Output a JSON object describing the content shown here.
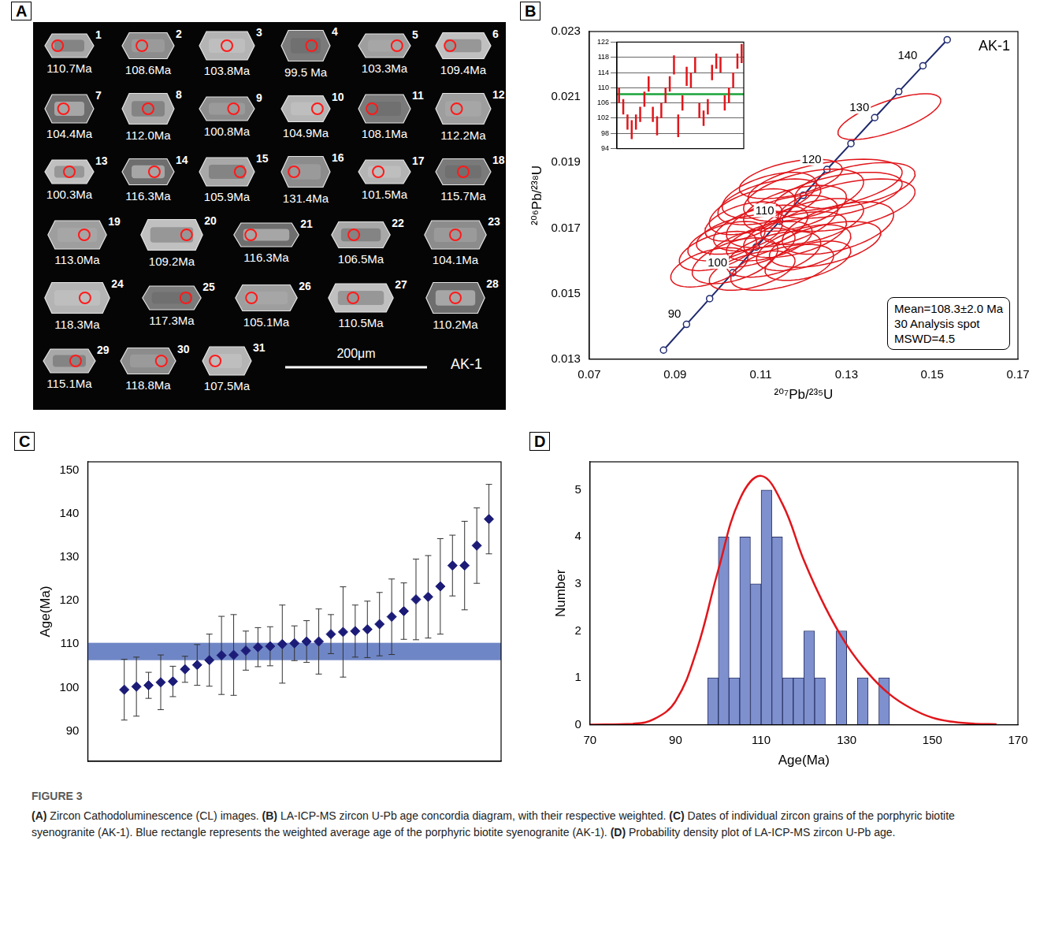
{
  "panel_a": {
    "letter": "A",
    "sample": "AK-1",
    "scale_bar": "200μm",
    "grains": [
      {
        "number": 1,
        "age": "110.7Ma"
      },
      {
        "number": 2,
        "age": "108.6Ma"
      },
      {
        "number": 3,
        "age": "103.8Ma"
      },
      {
        "number": 4,
        "age": "99.5 Ma"
      },
      {
        "number": 5,
        "age": "103.3Ma"
      },
      {
        "number": 6,
        "age": "109.4Ma"
      },
      {
        "number": 7,
        "age": "104.4Ma"
      },
      {
        "number": 8,
        "age": "112.0Ma"
      },
      {
        "number": 9,
        "age": "100.8Ma"
      },
      {
        "number": 10,
        "age": "104.9Ma"
      },
      {
        "number": 11,
        "age": "108.1Ma"
      },
      {
        "number": 12,
        "age": "112.2Ma"
      },
      {
        "number": 13,
        "age": "100.3Ma"
      },
      {
        "number": 14,
        "age": "116.3Ma"
      },
      {
        "number": 15,
        "age": "105.9Ma"
      },
      {
        "number": 16,
        "age": "131.4Ma"
      },
      {
        "number": 17,
        "age": "101.5Ma"
      },
      {
        "number": 18,
        "age": "115.7Ma"
      },
      {
        "number": 19,
        "age": "113.0Ma"
      },
      {
        "number": 20,
        "age": "109.2Ma"
      },
      {
        "number": 21,
        "age": "116.3Ma"
      },
      {
        "number": 22,
        "age": "106.5Ma"
      },
      {
        "number": 23,
        "age": "104.1Ma"
      },
      {
        "number": 24,
        "age": "118.3Ma"
      },
      {
        "number": 25,
        "age": "117.3Ma"
      },
      {
        "number": 26,
        "age": "105.1Ma"
      },
      {
        "number": 27,
        "age": "110.5Ma"
      },
      {
        "number": 28,
        "age": "110.2Ma"
      },
      {
        "number": 29,
        "age": "115.1Ma"
      },
      {
        "number": 30,
        "age": "118.8Ma"
      },
      {
        "number": 31,
        "age": "107.5Ma"
      }
    ]
  },
  "chart_data": [
    {
      "letter": "B",
      "type": "scatter",
      "x_label": "²⁰⁷Pb/²³⁵U",
      "y_label": "²⁰⁶Pb/²³⁸U",
      "xlim": [
        0.07,
        0.17
      ],
      "xticks": [
        0.07,
        0.09,
        0.11,
        0.13,
        0.15,
        0.17
      ],
      "ylim": [
        0.013,
        0.023
      ],
      "yticks": [
        0.013,
        0.015,
        0.017,
        0.019,
        0.021,
        0.023
      ],
      "grid": false,
      "sample": "AK-1",
      "annotation": [
        "Mean=108.3±2.0 Ma",
        "30 Analysis spot",
        "MSWD=4.5"
      ],
      "concordia": {
        "color": "#1f2a6e",
        "ages": [
          85,
          90,
          95,
          100,
          105,
          110,
          115,
          120,
          125,
          130,
          135,
          140,
          145
        ],
        "x": [
          0.08732,
          0.09268,
          0.09808,
          0.1035,
          0.10894,
          0.11442,
          0.11992,
          0.12545,
          0.13104,
          0.13659,
          0.14219,
          0.14784,
          0.1535
        ],
        "y": [
          0.013273,
          0.014059,
          0.014846,
          0.015635,
          0.016421,
          0.01721,
          0.018,
          0.018789,
          0.01958,
          0.020371,
          0.021163,
          0.021955,
          0.022748
        ],
        "labeled_ages": [
          90,
          100,
          110,
          120,
          130,
          140
        ]
      },
      "ellipses": {
        "color": "#e0161b",
        "x": [
          0.14,
          0.125,
          0.128,
          0.12,
          0.112,
          0.118,
          0.13,
          0.108,
          0.115,
          0.122,
          0.11,
          0.105,
          0.118,
          0.112,
          0.12,
          0.108,
          0.125,
          0.1,
          0.113,
          0.104,
          0.115,
          0.098,
          0.108,
          0.121,
          0.112,
          0.106,
          0.128,
          0.102,
          0.132,
          0.117
        ],
        "y": [
          0.0204,
          0.0183,
          0.018,
          0.018,
          0.0178,
          0.0176,
          0.0177,
          0.0175,
          0.0172,
          0.0172,
          0.017,
          0.0168,
          0.0168,
          0.0166,
          0.0164,
          0.0164,
          0.0165,
          0.0163,
          0.0162,
          0.016,
          0.0158,
          0.0158,
          0.0157,
          0.016,
          0.018,
          0.0172,
          0.017,
          0.0166,
          0.0183,
          0.0185
        ],
        "x_error": [
          0.012,
          0.018,
          0.015,
          0.014,
          0.012,
          0.012,
          0.016,
          0.01,
          0.013,
          0.012,
          0.011,
          0.01,
          0.012,
          0.01,
          0.011,
          0.01,
          0.013,
          0.009,
          0.011,
          0.01,
          0.012,
          0.009,
          0.01,
          0.01,
          0.011,
          0.009,
          0.013,
          0.009,
          0.014,
          0.012
        ],
        "y_error": [
          0.0007,
          0.0008,
          0.0007,
          0.0008,
          0.0007,
          0.0007,
          0.0008,
          0.0007,
          0.0008,
          0.0007,
          0.0007,
          0.0006,
          0.0007,
          0.0006,
          0.0007,
          0.0006,
          0.0007,
          0.0006,
          0.0007,
          0.0007,
          0.0007,
          0.0006,
          0.0006,
          0.0006,
          0.0007,
          0.0006,
          0.0008,
          0.0006,
          0.0007,
          0.0006
        ],
        "rho": [
          0.7,
          0.5,
          0.5,
          0.5,
          0.5,
          0.5,
          0.5,
          0.5,
          0.5,
          0.5,
          0.5,
          0.5,
          0.5,
          0.5,
          0.5,
          0.5,
          0.5,
          0.5,
          0.5,
          0.5,
          0.5,
          0.5,
          0.5,
          0.5,
          0.5,
          0.5,
          0.5,
          0.5,
          0.5,
          0.5
        ]
      },
      "inset": {
        "type": "error_bar",
        "ylim": [
          94,
          122
        ],
        "yticks": [
          94,
          98,
          102,
          106,
          110,
          114,
          118,
          122
        ],
        "grid": true,
        "tick_labels": "y",
        "color": "#e0161b",
        "values": [
          108,
          105,
          101,
          99,
          101,
          103,
          107,
          111,
          103,
          100,
          104,
          108,
          111,
          116,
          100,
          106,
          113,
          112,
          116,
          104,
          102,
          105,
          114,
          117,
          116,
          106,
          108,
          112,
          117,
          119
        ],
        "errors": [
          2,
          2,
          2,
          2.5,
          2,
          2,
          2,
          2,
          2,
          2.5,
          2,
          2,
          2,
          2.5,
          3,
          2,
          2.5,
          2,
          2,
          2,
          2,
          2,
          2,
          2,
          2,
          2,
          2,
          2,
          2,
          2.5
        ],
        "weighted_mean": 108.3,
        "mean_color": "#1aa33a"
      }
    },
    {
      "letter": "C",
      "type": "scatter",
      "y_label": "Age(Ma)",
      "x": [
        1,
        2,
        3,
        4,
        5,
        6,
        7,
        8,
        9,
        10,
        11,
        12,
        13,
        14,
        15,
        16,
        17,
        18,
        19,
        20,
        21,
        22,
        23,
        24,
        25,
        26,
        27,
        28,
        29,
        30,
        31
      ],
      "values": [
        99.5,
        100.2,
        100.5,
        101.2,
        101.4,
        104.2,
        105.2,
        106.3,
        107.4,
        107.5,
        108.5,
        109.3,
        109.5,
        110.0,
        110.2,
        110.6,
        110.6,
        112.3,
        112.8,
        113.0,
        113.4,
        114.6,
        116.3,
        117.6,
        120.3,
        120.9,
        123.3,
        128.1,
        128.1,
        132.7,
        138.8
      ],
      "errors": [
        7.0,
        6.8,
        3.0,
        6.3,
        3.5,
        3.0,
        4.7,
        6.0,
        9.0,
        9.3,
        4.5,
        4.5,
        4.5,
        9.0,
        4.0,
        4.8,
        7.5,
        4.5,
        10.4,
        6.0,
        6.5,
        7.3,
        8.7,
        6.5,
        9.3,
        9.5,
        11.0,
        7.0,
        10.2,
        8.7,
        8.0
      ],
      "xlim": [
        -2,
        32
      ],
      "ylim": [
        83,
        152
      ],
      "yticks": [
        90,
        100,
        110,
        120,
        130,
        140,
        150
      ],
      "tick_labels": "y",
      "grid": false,
      "color": "#1c1c78",
      "marker": "diamond",
      "band": {
        "range": [
          106.3,
          110.3
        ],
        "color": "#6f86c6"
      }
    },
    {
      "letter": "D",
      "type": "histogram",
      "x_label": "Age(Ma)",
      "y_label": "Number",
      "bins": [
        97.5,
        100,
        102.5,
        105,
        107.5,
        110,
        112.5,
        115,
        117.5,
        120,
        122.5,
        125,
        127.5,
        130,
        132.5,
        135,
        137.5,
        140
      ],
      "counts": [
        1,
        4,
        1,
        4,
        3,
        5,
        4,
        1,
        1,
        2,
        1,
        0,
        2,
        0,
        1,
        0,
        1
      ],
      "color": "#7f90cf",
      "xlim": [
        70,
        170
      ],
      "xticks": [
        70,
        90,
        110,
        130,
        150,
        170
      ],
      "ylim": [
        0,
        5.6
      ],
      "yticks": [
        0,
        1,
        2,
        3,
        4,
        5
      ],
      "grid": false,
      "curve": {
        "color": "#e0161b",
        "x": [
          70,
          80,
          85,
          90,
          95,
          100,
          105,
          110,
          115,
          120,
          125,
          130,
          135,
          140,
          145,
          150,
          155,
          160,
          165
        ],
        "y": [
          0,
          0.02,
          0.12,
          0.5,
          1.6,
          3.3,
          4.8,
          5.3,
          4.7,
          3.5,
          2.5,
          1.7,
          1.1,
          0.65,
          0.35,
          0.15,
          0.06,
          0.02,
          0.01
        ]
      }
    }
  ],
  "figure": {
    "label": "FIGURE 3",
    "entries": [
      {
        "letter": "(A)",
        "text": "Zircon Cathodoluminescence (CL) images."
      },
      {
        "letter": "(B)",
        "text": "LA-ICP-MS zircon U-Pb age concordia diagram, with their respective weighted."
      },
      {
        "letter": "(C)",
        "text": "Dates of individual zircon grains of the porphyric biotite syenogranite (AK-1). Blue rectangle represents the weighted average age of the porphyric biotite syenogranite (AK-1)."
      },
      {
        "letter": "(D)",
        "text": "Probability density plot of LA-ICP-MS zircon U-Pb age."
      }
    ]
  }
}
